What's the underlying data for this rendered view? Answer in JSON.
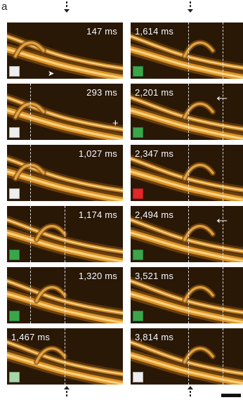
{
  "figure": {
    "panel_label": "a",
    "colors": {
      "white": "#eeeeee",
      "green": "#3aa64a",
      "light_green": "#a6d7a8",
      "red": "#e2262a"
    },
    "frames": [
      {
        "id": "f1",
        "time": "147 ms",
        "square": "white"
      },
      {
        "id": "f2",
        "time": "1,614 ms",
        "square": "green"
      },
      {
        "id": "f3",
        "time": "293 ms",
        "square": "white"
      },
      {
        "id": "f4",
        "time": "2,201 ms",
        "square": "green"
      },
      {
        "id": "f5",
        "time": "1,027 ms",
        "square": "white"
      },
      {
        "id": "f6",
        "time": "2,347 ms",
        "square": "red"
      },
      {
        "id": "f7",
        "time": "1,174 ms",
        "square": "green"
      },
      {
        "id": "f8",
        "time": "2,494 ms",
        "square": "green"
      },
      {
        "id": "f9",
        "time": "1,320 ms",
        "square": "green"
      },
      {
        "id": "f10",
        "time": "3,521 ms",
        "square": "green"
      },
      {
        "id": "f11",
        "time": "1,467 ms",
        "square": "light_green"
      },
      {
        "id": "f12",
        "time": "3,814 ms",
        "square": "white"
      }
    ]
  }
}
